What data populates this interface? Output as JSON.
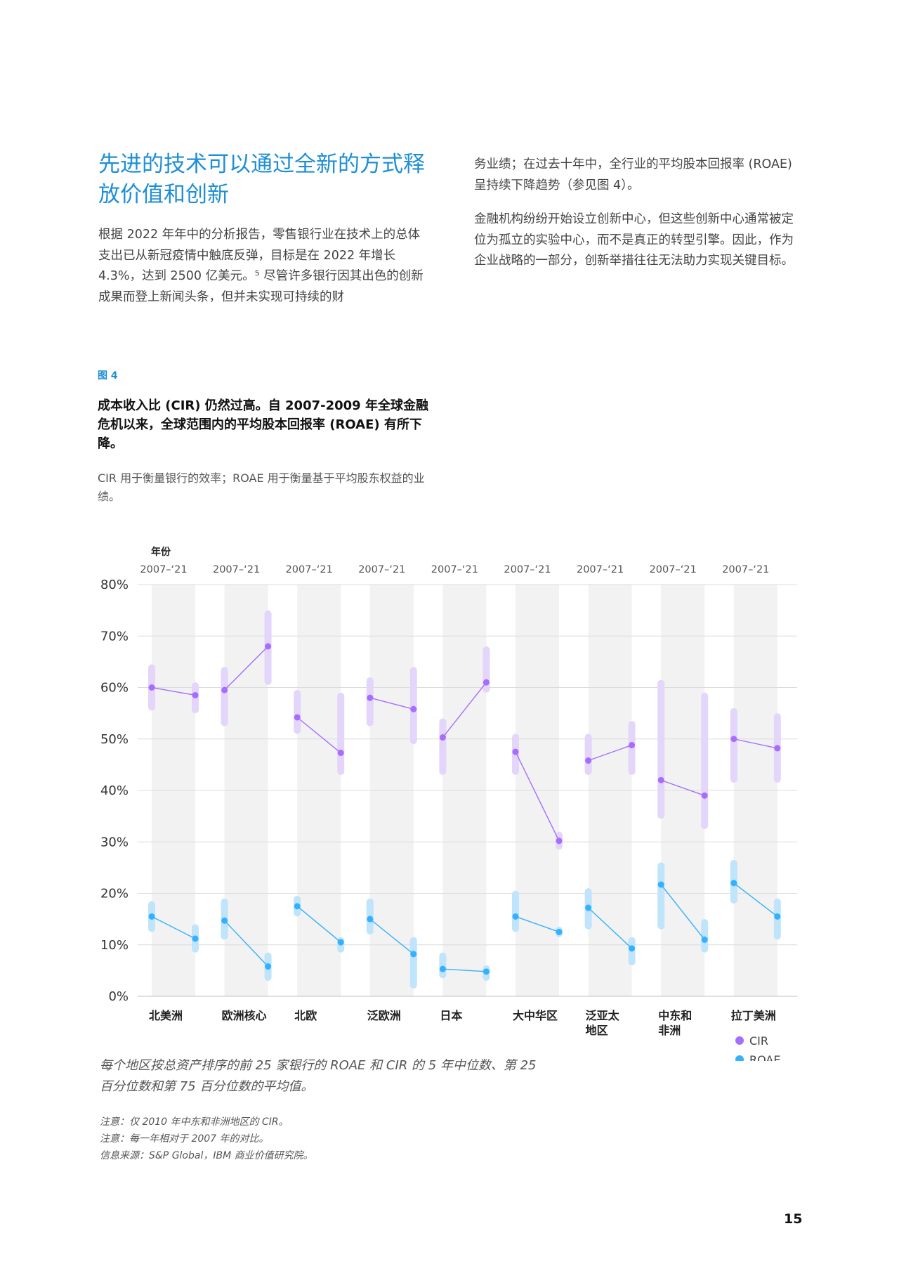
{
  "heading": "先进的技术可以通过全新的方式释放价值和创新",
  "left_paragraph": "根据 2022 年年中的分析报告，零售银行业在技术上的总体支出已从新冠疫情中触底反弹，目标是在 2022 年增长 4.3%，达到 2500 亿美元。⁵ 尽管许多银行因其出色的创新成果而登上新闻头条，但并未实现可持续的财",
  "right_paragraph_1": "务业绩；在过去十年中，全行业的平均股本回报率 (ROAE) 呈持续下降趋势（参见图 4）。",
  "right_paragraph_2": "金融机构纷纷开始设立创新中心，但这些创新中心通常被定位为孤立的实验中心，而不是真正的转型引擎。因此，作为企业战略的一部分，创新举措往往无法助力实现关键目标。",
  "figure": {
    "label": "图 4",
    "title": "成本收入比 (CIR) 仍然过高。自 2007-2009 年全球金融危机以来，全球范围内的平均股本回报率 (ROAE) 有所下降。",
    "description": "CIR 用于衡量银行的效率；ROAE 用于衡量基于平均股东权益的业绩。",
    "caption": "每个地区按总资产排序的前 25 家银行的 ROAE 和 CIR 的 5 年中位数、第 25 百分位数和第 75 百分位数的平均值。",
    "notes": [
      "注意：仅 2010 年中东和非洲地区的 CIR。",
      "注意：每一年相对于 2007 年的对比。",
      "信息来源：S&P Global，IBM 商业价值研究院。"
    ]
  },
  "page_number": "15",
  "colors": {
    "cir": "#a56eff",
    "roae": "#33b1ff",
    "accent": "#1e8fd5"
  },
  "chart_data": {
    "type": "range-line",
    "header_label": "年份",
    "period_label": "2007–‘21",
    "y_ticks": [
      "0%",
      "10%",
      "20%",
      "30%",
      "40%",
      "50%",
      "60%",
      "70%",
      "80%"
    ],
    "ylim": [
      0,
      80
    ],
    "legend": [
      {
        "name": "CIR",
        "color": "#a56eff"
      },
      {
        "name": "ROAE",
        "color": "#33b1ff"
      }
    ],
    "regions": [
      {
        "name": "北美洲",
        "cir": {
          "2007": {
            "median": 60.0,
            "range": [
              55.5,
              64.5
            ]
          },
          "2021": {
            "median": 58.5,
            "range": [
              55.0,
              61.0
            ]
          }
        },
        "roae": {
          "2007": {
            "median": 15.5,
            "range": [
              12.5,
              18.5
            ]
          },
          "2021": {
            "median": 11.2,
            "range": [
              8.5,
              14.0
            ]
          }
        }
      },
      {
        "name": "欧洲核心",
        "cir": {
          "2007": {
            "median": 59.5,
            "range": [
              52.5,
              64.0
            ]
          },
          "2021": {
            "median": 68.0,
            "range": [
              60.5,
              75.0
            ]
          }
        },
        "roae": {
          "2007": {
            "median": 14.7,
            "range": [
              11.0,
              19.0
            ]
          },
          "2021": {
            "median": 5.8,
            "range": [
              3.0,
              8.5
            ]
          }
        }
      },
      {
        "name": "北欧",
        "cir": {
          "2007": {
            "median": 54.2,
            "range": [
              51.0,
              59.5
            ]
          },
          "2021": {
            "median": 47.3,
            "range": [
              43.0,
              59.0
            ]
          }
        },
        "roae": {
          "2007": {
            "median": 17.5,
            "range": [
              15.5,
              19.5
            ]
          },
          "2021": {
            "median": 10.5,
            "range": [
              8.5,
              11.5
            ]
          }
        }
      },
      {
        "name": "泛欧洲",
        "cir": {
          "2007": {
            "median": 58.0,
            "range": [
              52.5,
              62.0
            ]
          },
          "2021": {
            "median": 55.8,
            "range": [
              49.0,
              64.0
            ]
          }
        },
        "roae": {
          "2007": {
            "median": 15.0,
            "range": [
              12.0,
              19.0
            ]
          },
          "2021": {
            "median": 8.2,
            "range": [
              1.5,
              11.5
            ]
          }
        }
      },
      {
        "name": "日本",
        "cir": {
          "2007": {
            "median": 50.3,
            "range": [
              43.0,
              54.0
            ]
          },
          "2021": {
            "median": 61.0,
            "range": [
              59.0,
              68.0
            ]
          }
        },
        "roae": {
          "2007": {
            "median": 5.3,
            "range": [
              3.5,
              8.5
            ]
          },
          "2021": {
            "median": 4.8,
            "range": [
              3.0,
              6.0
            ]
          }
        }
      },
      {
        "name": "大中华区",
        "cir": {
          "2007": {
            "median": 47.5,
            "range": [
              43.0,
              51.0
            ]
          },
          "2021": {
            "median": 30.2,
            "range": [
              28.5,
              32.0
            ]
          }
        },
        "roae": {
          "2007": {
            "median": 15.5,
            "range": [
              12.5,
              20.5
            ]
          },
          "2021": {
            "median": 12.5,
            "range": [
              11.5,
              13.5
            ]
          }
        }
      },
      {
        "name": "泛亚太地区",
        "cir": {
          "2007": {
            "median": 45.8,
            "range": [
              43.0,
              51.0
            ]
          },
          "2021": {
            "median": 48.8,
            "range": [
              43.0,
              53.5
            ]
          }
        },
        "roae": {
          "2007": {
            "median": 17.2,
            "range": [
              13.0,
              21.0
            ]
          },
          "2021": {
            "median": 9.3,
            "range": [
              6.0,
              11.5
            ]
          }
        }
      },
      {
        "name": "中东和非洲",
        "cir": {
          "2007": {
            "median": 42.0,
            "range": [
              34.5,
              61.5
            ]
          },
          "2021": {
            "median": 39.0,
            "range": [
              32.5,
              59.0
            ]
          }
        },
        "roae": {
          "2007": {
            "median": 21.7,
            "range": [
              13.0,
              26.0
            ]
          },
          "2021": {
            "median": 11.0,
            "range": [
              8.5,
              15.0
            ]
          }
        }
      },
      {
        "name": "拉丁美洲",
        "cir": {
          "2007": {
            "median": 50.0,
            "range": [
              41.5,
              56.0
            ]
          },
          "2021": {
            "median": 48.2,
            "range": [
              41.5,
              55.0
            ]
          }
        },
        "roae": {
          "2007": {
            "median": 22.0,
            "range": [
              18.0,
              26.5
            ]
          },
          "2021": {
            "median": 15.5,
            "range": [
              11.0,
              19.0
            ]
          }
        }
      }
    ]
  }
}
